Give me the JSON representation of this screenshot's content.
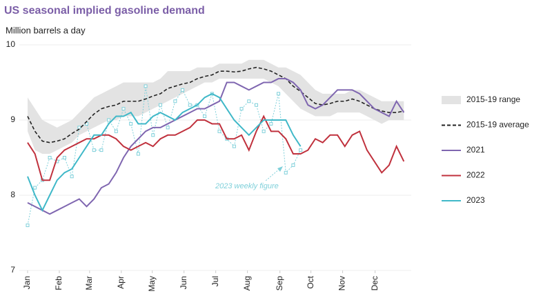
{
  "chart_data": {
    "type": "line",
    "title": "US seasonal implied gasoline demand",
    "y_label": "Million barrels a day",
    "x": [
      1,
      2,
      3,
      4,
      5,
      6,
      7,
      8,
      9,
      10,
      11,
      12,
      13,
      14,
      15,
      16,
      17,
      18,
      19,
      20,
      21,
      22,
      23,
      24,
      25,
      26,
      27,
      28,
      29,
      30,
      31,
      32,
      33,
      34,
      35,
      36,
      37,
      38,
      39,
      40,
      41,
      42,
      43,
      44,
      45,
      46,
      47,
      48,
      49,
      50,
      51,
      52
    ],
    "xlim": [
      1,
      53
    ],
    "xticks": [
      {
        "value": 1,
        "label": "Jan"
      },
      {
        "value": 5.3,
        "label": "Feb"
      },
      {
        "value": 9.4,
        "label": "Mar"
      },
      {
        "value": 13.7,
        "label": "Apr"
      },
      {
        "value": 17.9,
        "label": "May"
      },
      {
        "value": 22.2,
        "label": "Jun"
      },
      {
        "value": 26.5,
        "label": "Jul"
      },
      {
        "value": 30.8,
        "label": "Aug"
      },
      {
        "value": 35.2,
        "label": "Sep"
      },
      {
        "value": 39.4,
        "label": "Oct"
      },
      {
        "value": 43.7,
        "label": "Nov"
      },
      {
        "value": 48.1,
        "label": "Dec"
      }
    ],
    "ylim": [
      7,
      10
    ],
    "yticks": [
      7,
      8,
      9,
      10
    ],
    "grid": true,
    "range": {
      "name": "2015-19 range",
      "color": "#e3e3e3",
      "low": [
        8.85,
        8.6,
        8.55,
        8.55,
        8.6,
        8.65,
        8.7,
        8.8,
        8.85,
        8.9,
        8.95,
        9.0,
        9.0,
        9.05,
        9.05,
        9.05,
        9.1,
        9.15,
        9.2,
        9.25,
        9.3,
        9.35,
        9.4,
        9.45,
        9.5,
        9.5,
        9.55,
        9.55,
        9.55,
        9.55,
        9.55,
        9.55,
        9.55,
        9.5,
        9.45,
        9.35,
        9.25,
        9.15,
        9.1,
        9.05,
        9.05,
        9.05,
        9.1,
        9.1,
        9.1,
        9.1,
        9.05,
        9.0,
        8.95,
        9.0,
        9.0,
        9.0
      ],
      "high": [
        9.3,
        9.15,
        9.0,
        8.95,
        8.9,
        8.95,
        9.0,
        9.1,
        9.2,
        9.3,
        9.35,
        9.4,
        9.45,
        9.5,
        9.5,
        9.5,
        9.5,
        9.5,
        9.55,
        9.65,
        9.65,
        9.65,
        9.65,
        9.7,
        9.7,
        9.7,
        9.75,
        9.75,
        9.75,
        9.75,
        9.8,
        9.8,
        9.8,
        9.75,
        9.7,
        9.7,
        9.65,
        9.6,
        9.5,
        9.4,
        9.35,
        9.35,
        9.35,
        9.35,
        9.4,
        9.4,
        9.35,
        9.3,
        9.25,
        9.25,
        9.25,
        9.25
      ]
    },
    "series": [
      {
        "name": "2015-19 average",
        "color": "#222222",
        "dashed": true,
        "values": [
          9.05,
          8.85,
          8.72,
          8.7,
          8.72,
          8.75,
          8.82,
          8.88,
          8.98,
          9.08,
          9.15,
          9.18,
          9.2,
          9.25,
          9.25,
          9.25,
          9.28,
          9.32,
          9.35,
          9.42,
          9.45,
          9.48,
          9.5,
          9.55,
          9.58,
          9.6,
          9.65,
          9.65,
          9.64,
          9.65,
          9.68,
          9.7,
          9.68,
          9.65,
          9.6,
          9.55,
          9.45,
          9.38,
          9.3,
          9.22,
          9.2,
          9.22,
          9.25,
          9.25,
          9.28,
          9.25,
          9.2,
          9.15,
          9.12,
          9.1,
          9.1,
          9.12
        ]
      },
      {
        "name": "2021",
        "color": "#7f66b0",
        "values": [
          7.9,
          7.85,
          7.8,
          7.75,
          7.8,
          7.85,
          7.9,
          7.95,
          7.85,
          7.95,
          8.1,
          8.15,
          8.3,
          8.5,
          8.65,
          8.75,
          8.85,
          8.9,
          8.9,
          8.95,
          9.0,
          9.05,
          9.1,
          9.15,
          9.15,
          9.2,
          9.25,
          9.5,
          9.5,
          9.45,
          9.4,
          9.45,
          9.5,
          9.5,
          9.55,
          9.55,
          9.5,
          9.4,
          9.2,
          9.15,
          9.2,
          9.3,
          9.4,
          9.4,
          9.4,
          9.35,
          9.25,
          9.15,
          9.1,
          9.05,
          9.25,
          9.1
        ]
      },
      {
        "name": "2022",
        "color": "#c0313d",
        "values": [
          8.7,
          8.55,
          8.2,
          8.2,
          8.5,
          8.6,
          8.65,
          8.7,
          8.75,
          8.75,
          8.8,
          8.8,
          8.75,
          8.65,
          8.6,
          8.65,
          8.7,
          8.65,
          8.75,
          8.8,
          8.8,
          8.85,
          8.9,
          9.0,
          9.0,
          8.95,
          8.95,
          8.75,
          8.75,
          8.8,
          8.6,
          8.85,
          9.05,
          8.85,
          8.85,
          8.75,
          8.55,
          8.55,
          8.6,
          8.75,
          8.7,
          8.8,
          8.8,
          8.65,
          8.8,
          8.85,
          8.6,
          8.45,
          8.3,
          8.4,
          8.65,
          8.45
        ]
      },
      {
        "name": "2023",
        "color": "#3fb8c8",
        "values": [
          8.25,
          8.0,
          7.8,
          8.0,
          8.2,
          8.3,
          8.35,
          8.5,
          8.65,
          8.8,
          8.8,
          8.95,
          9.05,
          9.05,
          9.1,
          8.95,
          8.95,
          9.05,
          9.1,
          9.05,
          9.0,
          9.1,
          9.15,
          9.2,
          9.3,
          9.35,
          9.3,
          9.15,
          9.0,
          8.9,
          8.8,
          8.9,
          9.0,
          9.0,
          9.0,
          9.0,
          8.8,
          8.65,
          null,
          null,
          null,
          null,
          null,
          null,
          null,
          null,
          null,
          null,
          null,
          null,
          null,
          null
        ]
      }
    ],
    "weekly": {
      "annotation": "2023 weekly figure",
      "color": "#7fd0da",
      "values": [
        7.6,
        8.1,
        8.2,
        8.5,
        8.45,
        8.5,
        8.25,
        8.9,
        8.95,
        8.6,
        8.6,
        9.0,
        8.85,
        9.15,
        8.95,
        8.55,
        9.45,
        8.8,
        9.2,
        8.9,
        9.25,
        9.4,
        9.2,
        9.2,
        9.05,
        9.35,
        8.85,
        8.75,
        8.65,
        9.15,
        9.25,
        9.2,
        8.85,
        8.95,
        9.35,
        8.3,
        8.4,
        8.6,
        null,
        null,
        null,
        null,
        null,
        null,
        null,
        null,
        null,
        null,
        null,
        null,
        null,
        null
      ]
    }
  }
}
